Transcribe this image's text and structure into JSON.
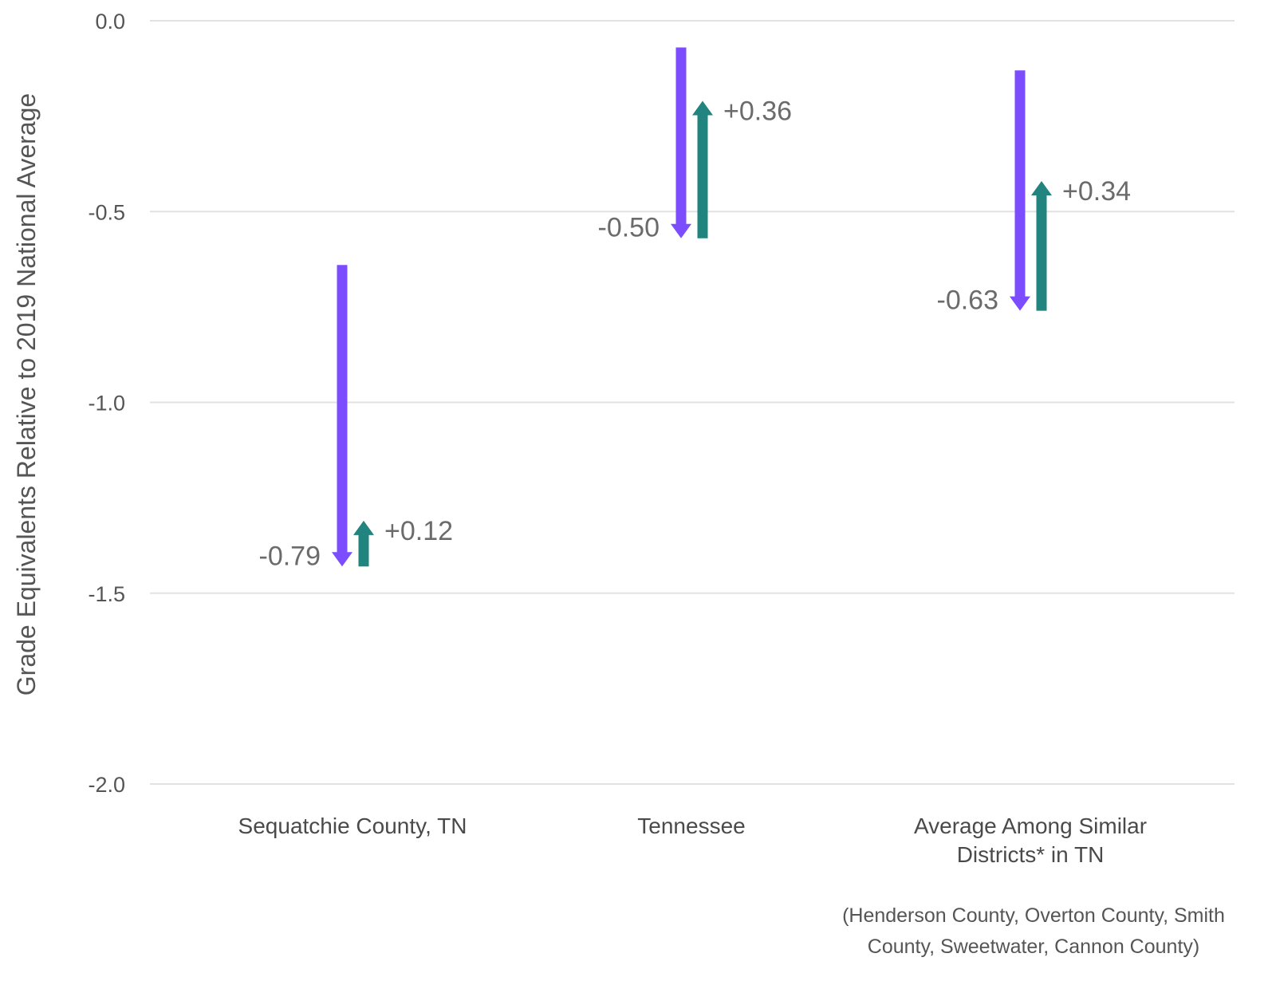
{
  "chart_data": {
    "type": "bar",
    "ylabel": "Grade Equivalents Relative to 2019 National Average",
    "ylim": [
      -2.0,
      0.0
    ],
    "yticks": [
      0.0,
      -0.5,
      -1.0,
      -1.5,
      -2.0
    ],
    "ytick_labels": [
      "0.0",
      "-0.5",
      "-1.0",
      "-1.5",
      "-2.0"
    ],
    "grid": true,
    "categories": [
      [
        "Sequatchie County, TN"
      ],
      [
        "Tennessee"
      ],
      [
        "Average Among Similar",
        "Districts* in TN"
      ]
    ],
    "series": [
      {
        "color": "#7B4DFF",
        "direction": "down",
        "start": [
          -0.64,
          -0.07,
          -0.13
        ],
        "end": [
          -1.43,
          -0.57,
          -0.76
        ],
        "labels": [
          "-0.79",
          "-0.50",
          "-0.63"
        ]
      },
      {
        "color": "#21847E",
        "direction": "up",
        "start": [
          -1.43,
          -0.57,
          -0.76
        ],
        "end": [
          -1.31,
          -0.21,
          -0.42
        ],
        "labels": [
          "+0.12",
          "+0.36",
          "+0.34"
        ]
      }
    ],
    "footnote": [
      "(Henderson County, Overton County, Smith",
      "County, Sweetwater, Cannon County)"
    ]
  }
}
